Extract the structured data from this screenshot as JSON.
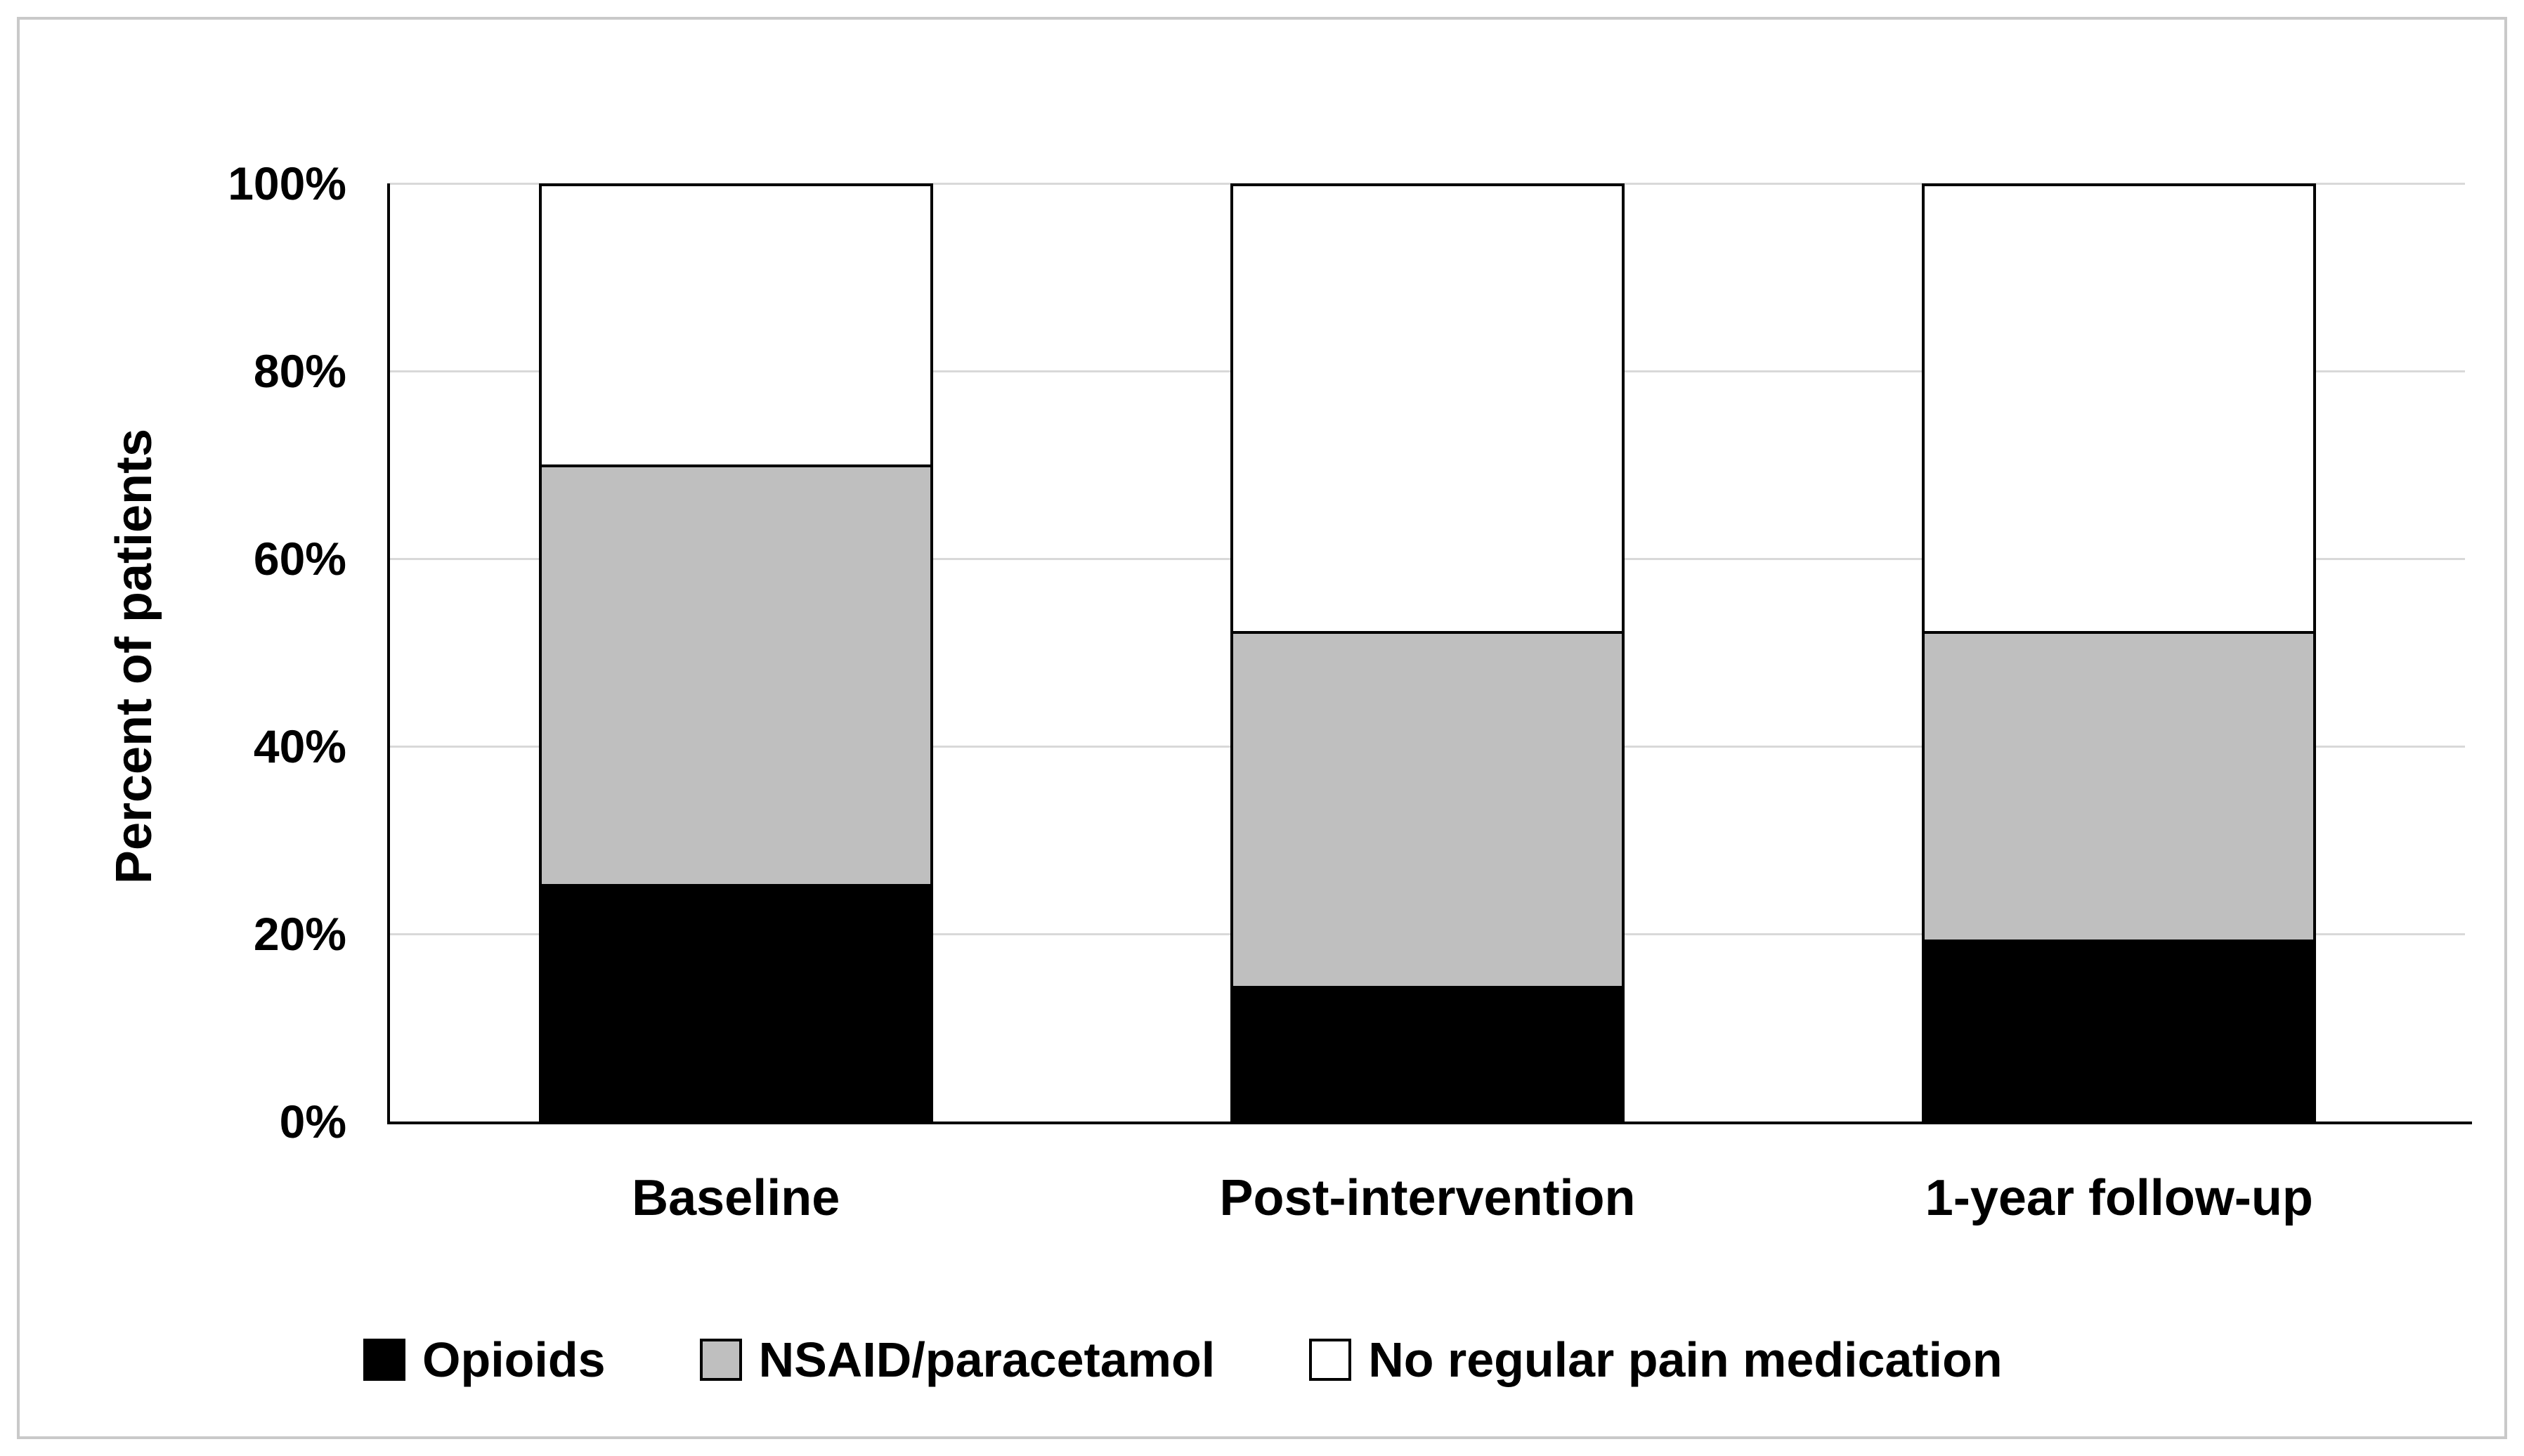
{
  "figure": {
    "y_axis_title": "Percent of patients",
    "yticks": [
      "0%",
      "20%",
      "40%",
      "60%",
      "80%",
      "100%"
    ]
  },
  "chart_data": {
    "type": "bar",
    "stacked": true,
    "title": "",
    "xlabel": "",
    "ylabel": "Percent of patients",
    "ylim": [
      0,
      100
    ],
    "ytick_labels": [
      "0%",
      "20%",
      "40%",
      "60%",
      "80%",
      "100%"
    ],
    "grid": true,
    "legend_position": "bottom",
    "categories": [
      "Baseline",
      "Post-intervention",
      "1-year follow-up"
    ],
    "series": [
      {
        "name": "Opioids",
        "color": "#000000",
        "values": [
          25,
          14,
          19
        ]
      },
      {
        "name": "NSAID/paracetamol",
        "color": "#bfbfbf",
        "values": [
          45,
          38,
          33
        ]
      },
      {
        "name": "No regular pain medication",
        "color": "#ffffff",
        "values": [
          30,
          48,
          48
        ]
      }
    ],
    "colors": {
      "gridline": "#d9d9d9",
      "axis": "#000000",
      "frame_border": "#c9c9c9",
      "background": "#ffffff"
    }
  }
}
